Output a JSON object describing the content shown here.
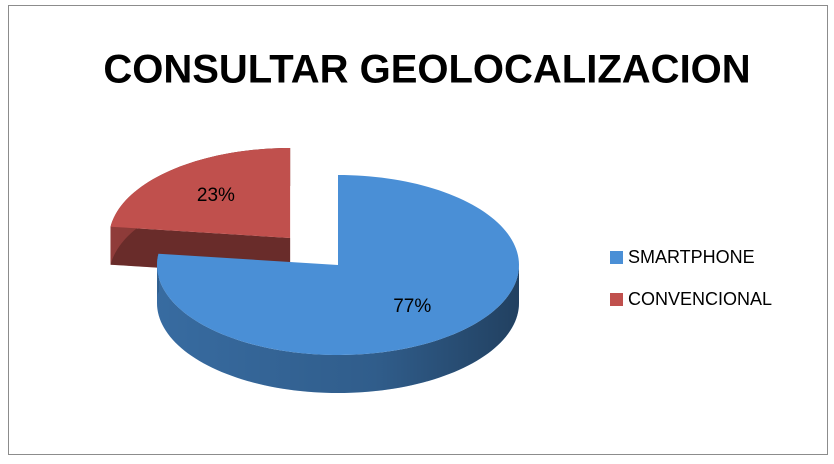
{
  "chart_data": {
    "type": "pie",
    "title": "CONSULTAR GEOLOCALIZACION",
    "categories": [
      "SMARTPHONE",
      "CONVENCIONAL"
    ],
    "values": [
      77,
      23
    ],
    "value_labels": [
      "77%",
      "23%"
    ],
    "colors": [
      "#4a8fd6",
      "#c0504d"
    ],
    "legend": "right"
  }
}
